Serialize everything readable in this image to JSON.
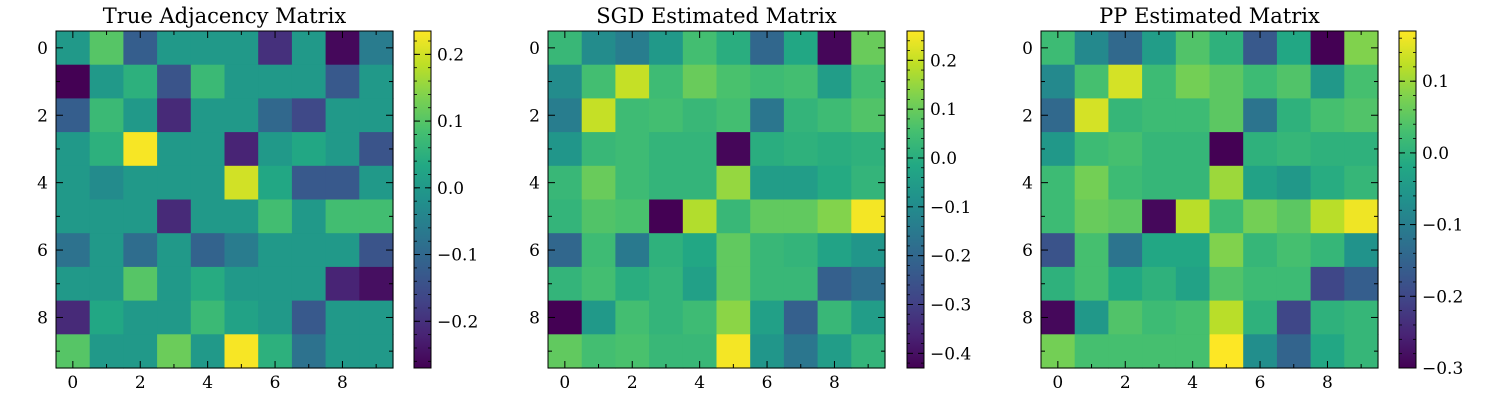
{
  "chart_data": [
    {
      "type": "heatmap",
      "title": "True Adjacency Matrix",
      "x_ticks": [
        "0",
        "2",
        "4",
        "6",
        "8"
      ],
      "y_ticks": [
        "0",
        "2",
        "4",
        "6",
        "8"
      ],
      "colormap": "viridis",
      "vmin": -0.27,
      "vmax": 0.235,
      "colorbar_ticks": [
        -0.2,
        -0.1,
        0.0,
        0.1,
        0.2
      ],
      "colorbar_labels": [
        "−0.2",
        "−0.1",
        "0.0",
        "0.1",
        "0.2"
      ],
      "matrix": [
        [
          0,
          0.1,
          -0.12,
          0,
          0,
          0,
          -0.2,
          0,
          -0.26,
          -0.06
        ],
        [
          -0.27,
          0,
          0.05,
          -0.14,
          0.07,
          0,
          0,
          0,
          -0.13,
          0
        ],
        [
          -0.12,
          0.07,
          0,
          -0.21,
          0,
          0,
          -0.1,
          -0.16,
          0,
          0
        ],
        [
          0,
          0.05,
          0.23,
          0,
          0,
          -0.22,
          0,
          0.03,
          0,
          -0.14
        ],
        [
          0,
          -0.03,
          0,
          0,
          0,
          0.2,
          0.03,
          -0.13,
          -0.13,
          0
        ],
        [
          0,
          0,
          0,
          -0.21,
          0,
          0,
          0.08,
          0,
          0.08,
          0.08
        ],
        [
          -0.08,
          0,
          -0.09,
          0,
          -0.11,
          -0.06,
          0,
          0,
          0,
          -0.14
        ],
        [
          0,
          0,
          0.1,
          0,
          0.04,
          0,
          0,
          0,
          -0.22,
          -0.25
        ],
        [
          -0.21,
          0.03,
          0,
          0,
          0.07,
          0.02,
          0,
          -0.13,
          0,
          0
        ],
        [
          0.1,
          0,
          0,
          0.12,
          0,
          0.23,
          0.05,
          -0.08,
          0,
          0
        ]
      ]
    },
    {
      "type": "heatmap",
      "title": "SGD Estimated Matrix",
      "x_ticks": [
        "0",
        "2",
        "4",
        "6",
        "8"
      ],
      "y_ticks": [
        "0",
        "2",
        "4",
        "6",
        "8"
      ],
      "colormap": "viridis",
      "vmin": -0.43,
      "vmax": 0.26,
      "colorbar_ticks": [
        -0.4,
        -0.3,
        -0.2,
        -0.1,
        0.0,
        0.1,
        0.2
      ],
      "colorbar_labels": [
        "−0.4",
        "−0.3",
        "−0.2",
        "−0.1",
        "0.0",
        "0.1",
        "0.2"
      ],
      "matrix": [
        [
          0.03,
          -0.1,
          -0.14,
          -0.06,
          0.05,
          0,
          -0.2,
          -0.02,
          -0.42,
          0.1
        ],
        [
          -0.1,
          0.05,
          0.2,
          0.04,
          0.1,
          0.06,
          0.04,
          0.05,
          -0.05,
          0.05
        ],
        [
          -0.14,
          0.2,
          0.04,
          0.05,
          0.03,
          0.05,
          -0.16,
          0.02,
          0.04,
          0.07
        ],
        [
          -0.07,
          0.03,
          0.04,
          0.02,
          0.02,
          -0.42,
          0,
          0.01,
          0,
          0.01
        ],
        [
          0.03,
          0.1,
          0.04,
          0.02,
          0.02,
          0.15,
          -0.05,
          -0.05,
          -0.01,
          0.02
        ],
        [
          0.02,
          0.07,
          0.06,
          -0.43,
          0.18,
          0.03,
          0.09,
          0.09,
          0.13,
          0.25
        ],
        [
          -0.2,
          0.04,
          -0.15,
          0.01,
          -0.02,
          0.09,
          0.03,
          0.02,
          -0.03,
          -0.07
        ],
        [
          0.02,
          0.05,
          0,
          0.02,
          -0.04,
          0.09,
          0.03,
          0.03,
          -0.22,
          -0.18
        ],
        [
          -0.43,
          -0.06,
          0.05,
          0.02,
          0.04,
          0.14,
          -0.04,
          -0.22,
          0.03,
          -0.05
        ],
        [
          0.09,
          0.05,
          0.06,
          0.03,
          0.03,
          0.25,
          -0.07,
          -0.16,
          -0.05,
          0.02
        ]
      ]
    },
    {
      "type": "heatmap",
      "title": "PP Estimated Matrix",
      "x_ticks": [
        "0",
        "2",
        "4",
        "6",
        "8"
      ],
      "y_ticks": [
        "0",
        "2",
        "4",
        "6",
        "8"
      ],
      "colormap": "viridis",
      "vmin": -0.3,
      "vmax": 0.17,
      "colorbar_ticks": [
        -0.3,
        -0.2,
        -0.1,
        0.0,
        0.1
      ],
      "colorbar_labels": [
        "−0.3",
        "−0.2",
        "−0.1",
        "0.0",
        "0.1"
      ],
      "matrix": [
        [
          0.02,
          -0.08,
          -0.14,
          -0.04,
          0.04,
          0,
          -0.17,
          -0.02,
          -0.3,
          0.08
        ],
        [
          -0.08,
          0.03,
          0.14,
          0.02,
          0.07,
          0.05,
          0.02,
          0.04,
          -0.05,
          0.03
        ],
        [
          -0.14,
          0.14,
          0.01,
          0.02,
          0.02,
          0.05,
          -0.12,
          0,
          0.03,
          0.04
        ],
        [
          -0.05,
          0.02,
          0.03,
          0.01,
          0.01,
          -0.3,
          0,
          0.01,
          0,
          0
        ],
        [
          0.02,
          0.07,
          0.02,
          0.01,
          0.01,
          0.1,
          -0.03,
          -0.05,
          -0.01,
          0.01
        ],
        [
          0.02,
          0.06,
          0.05,
          -0.29,
          0.12,
          0.02,
          0.07,
          0.05,
          0.12,
          0.16
        ],
        [
          -0.18,
          0.03,
          -0.12,
          -0.02,
          -0.02,
          0.08,
          0.01,
          0.03,
          0.01,
          -0.06
        ],
        [
          0,
          0.03,
          -0.02,
          0,
          -0.03,
          0.04,
          0.02,
          0.02,
          -0.2,
          -0.16
        ],
        [
          -0.29,
          -0.05,
          0.04,
          0.02,
          0.03,
          0.12,
          0,
          -0.2,
          0,
          0.01
        ],
        [
          0.07,
          0.03,
          0.03,
          0.03,
          0.03,
          0.17,
          -0.07,
          -0.15,
          -0.02,
          0.01
        ]
      ]
    }
  ]
}
